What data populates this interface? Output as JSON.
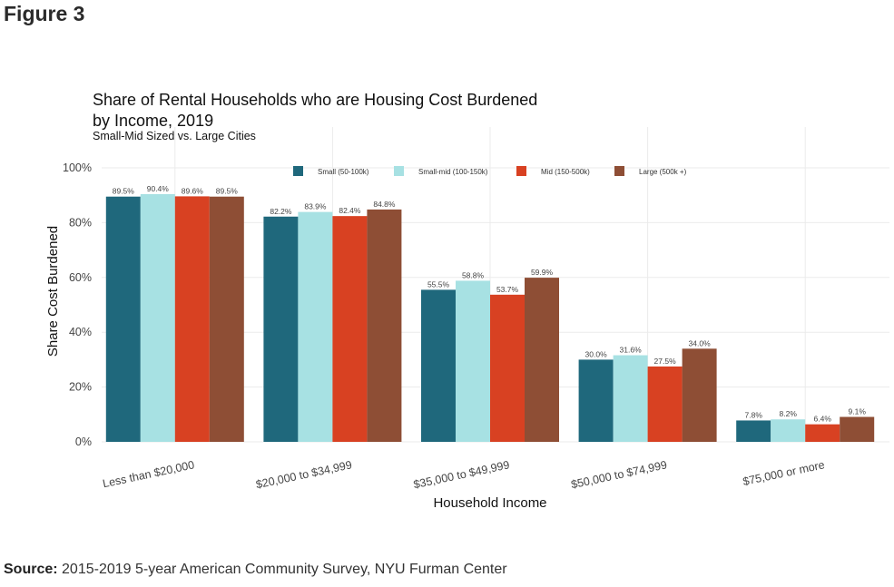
{
  "figure_label": "Figure 3",
  "source": {
    "bold": "Source:",
    "text": "2015-2019 5-year American Community Survey, NYU Furman Center"
  },
  "chart_data": {
    "type": "bar",
    "title_line1": "Share of Rental Households who are Housing Cost Burdened",
    "title_line2": "by Income, 2019",
    "subtitle": "Small-Mid Sized vs. Large Cities",
    "xlabel": "Household Income",
    "ylabel": "Share Cost Burdened",
    "ylim": [
      0,
      100
    ],
    "yticks": [
      "0%",
      "20%",
      "40%",
      "60%",
      "80%",
      "100%"
    ],
    "grid": true,
    "legend_position": "top",
    "categories": [
      "Less than $20,000",
      "$20,000 to $34,999",
      "$35,000 to $49,999",
      "$50,000 to $74,999",
      "$75,000 or more"
    ],
    "series": [
      {
        "name": "Small (50-100k)",
        "color": "#1f687c",
        "values": [
          89.5,
          82.2,
          55.5,
          30.0,
          7.8
        ],
        "labels": [
          "89.5%",
          "82.2%",
          "55.5%",
          "30.0%",
          "7.8%"
        ]
      },
      {
        "name": "Small-mid (100-150k)",
        "color": "#a7e1e3",
        "values": [
          90.4,
          83.9,
          58.8,
          31.6,
          8.2
        ],
        "labels": [
          "90.4%",
          "83.9%",
          "58.8%",
          "31.6%",
          "8.2%"
        ]
      },
      {
        "name": "Mid (150-500k)",
        "color": "#d84122",
        "values": [
          89.6,
          82.4,
          53.7,
          27.5,
          6.4
        ],
        "labels": [
          "89.6%",
          "82.4%",
          "53.7%",
          "27.5%",
          "6.4%"
        ]
      },
      {
        "name": "Large (500k +)",
        "color": "#8e4e35",
        "values": [
          89.5,
          84.8,
          59.9,
          34.0,
          9.1
        ],
        "labels": [
          "89.5%",
          "84.8%",
          "59.9%",
          "34.0%",
          "9.1%"
        ]
      }
    ]
  }
}
